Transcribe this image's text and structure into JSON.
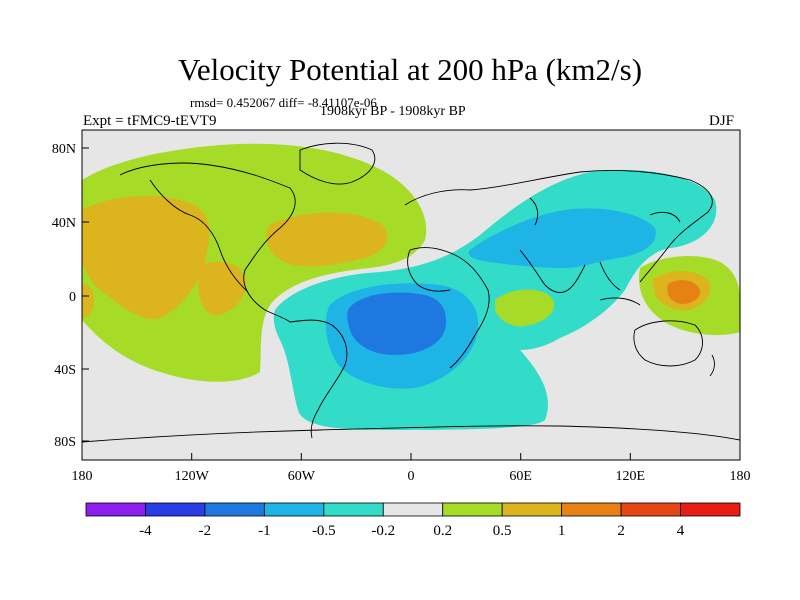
{
  "header": {
    "title": "Velocity Potential at 200 hPa (km2/s)",
    "stats": "rmsd= 0.452067 diff= -8.41107e-06",
    "period": "1908kyr BP - 1908kyr BP",
    "experiment": "Expt = tFMC9-tEVT9",
    "season": "DJF"
  },
  "axes": {
    "x_ticks": [
      "180",
      "120W",
      "60W",
      "0",
      "60E",
      "120E",
      "180"
    ],
    "y_ticks": [
      "80N",
      "40N",
      "0",
      "40S",
      "80S"
    ]
  },
  "colorbar": {
    "labels": [
      "-4",
      "-2",
      "-1",
      "-0.5",
      "-0.2",
      "0.2",
      "0.5",
      "1",
      "2",
      "4"
    ],
    "colors": [
      "#8c1ef0",
      "#2a3ce6",
      "#1e78e0",
      "#1eb4e6",
      "#32dcc8",
      "#e6e6e6",
      "#a6dc28",
      "#dcb41e",
      "#e68214",
      "#e64614",
      "#e61e14"
    ]
  }
}
